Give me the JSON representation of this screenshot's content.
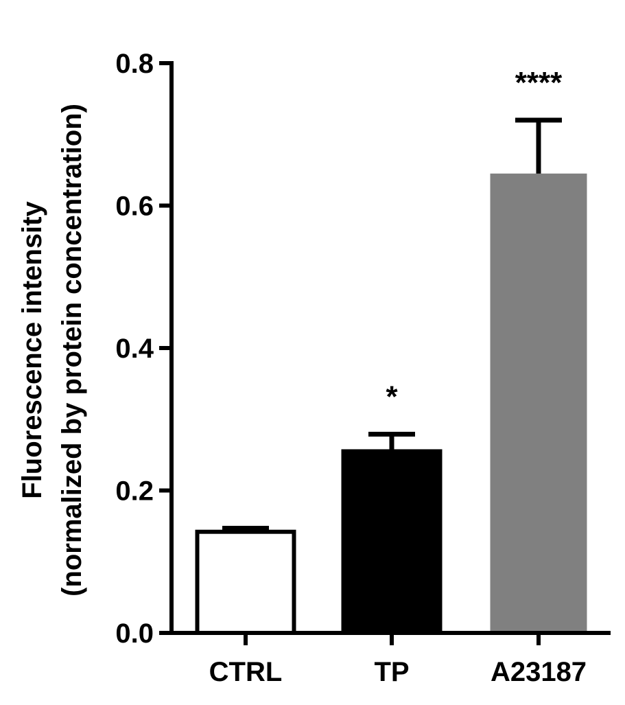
{
  "chart_data": {
    "type": "bar",
    "title": "",
    "xlabel": "",
    "ylabel": [
      "Fluorescence intensity",
      "(normalized by protein concentration)"
    ],
    "ylim": [
      0,
      0.8
    ],
    "yticks": [
      "0.0",
      "0.2",
      "0.4",
      "0.6",
      "0.8"
    ],
    "categories": [
      "CTRL",
      "TP",
      "A23187"
    ],
    "values": [
      0.142,
      0.255,
      0.645
    ],
    "errors": [
      0.005,
      0.024,
      0.075
    ],
    "significance": [
      "",
      "*",
      "****"
    ],
    "colors": {
      "CTRL": "#ffffff",
      "TP": "#000000",
      "A23187": "#808080"
    },
    "grid": false,
    "legend": "none"
  }
}
